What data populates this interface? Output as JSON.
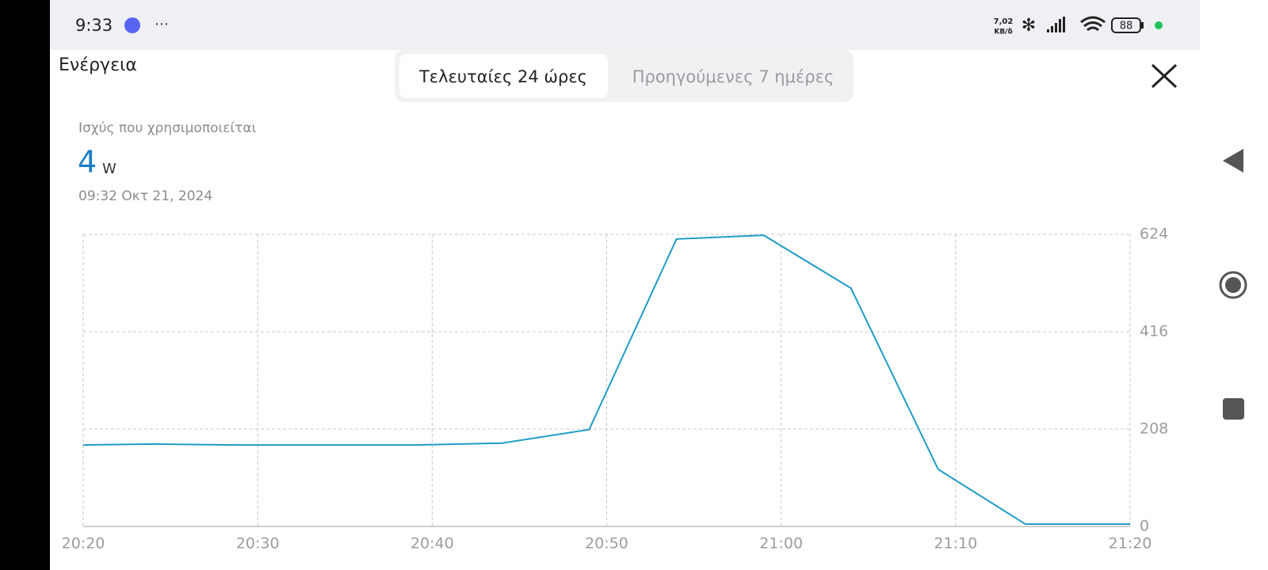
{
  "ui": {
    "status_time": "9:33",
    "net_speed": "7,02",
    "net_unit": "KB/δ",
    "battery": "88",
    "page_title": "Ενέργεια",
    "tabs": [
      "Τελευταίες 24 ώρες",
      "Προηγούμενες 7 ημέρες"
    ],
    "metric_label": "Ισχύς που χρησιμοποιείται",
    "metric_value": 4,
    "metric_unit": "W",
    "timestamp": "09:32  Οκτ 21, 2024"
  },
  "chart_data": {
    "type": "line",
    "x": [
      "20:20",
      "20:24",
      "20:29",
      "20:34",
      "20:39",
      "20:44",
      "20:49",
      "20:54",
      "20:59",
      "21:04",
      "21:09",
      "21:14",
      "21:20"
    ],
    "values": [
      174,
      176,
      174,
      174,
      174,
      178,
      207,
      614,
      622,
      509,
      122,
      5,
      5
    ],
    "color": "#1e9cc6",
    "xlim": [
      "20:20",
      "21:20"
    ],
    "xticks": [
      "20:20",
      "20:30",
      "20:40",
      "20:50",
      "21:00",
      "21:10",
      "21:20"
    ],
    "ylim": [
      0,
      624
    ],
    "yticks": [
      0,
      208,
      416,
      624
    ],
    "grid": true
  }
}
